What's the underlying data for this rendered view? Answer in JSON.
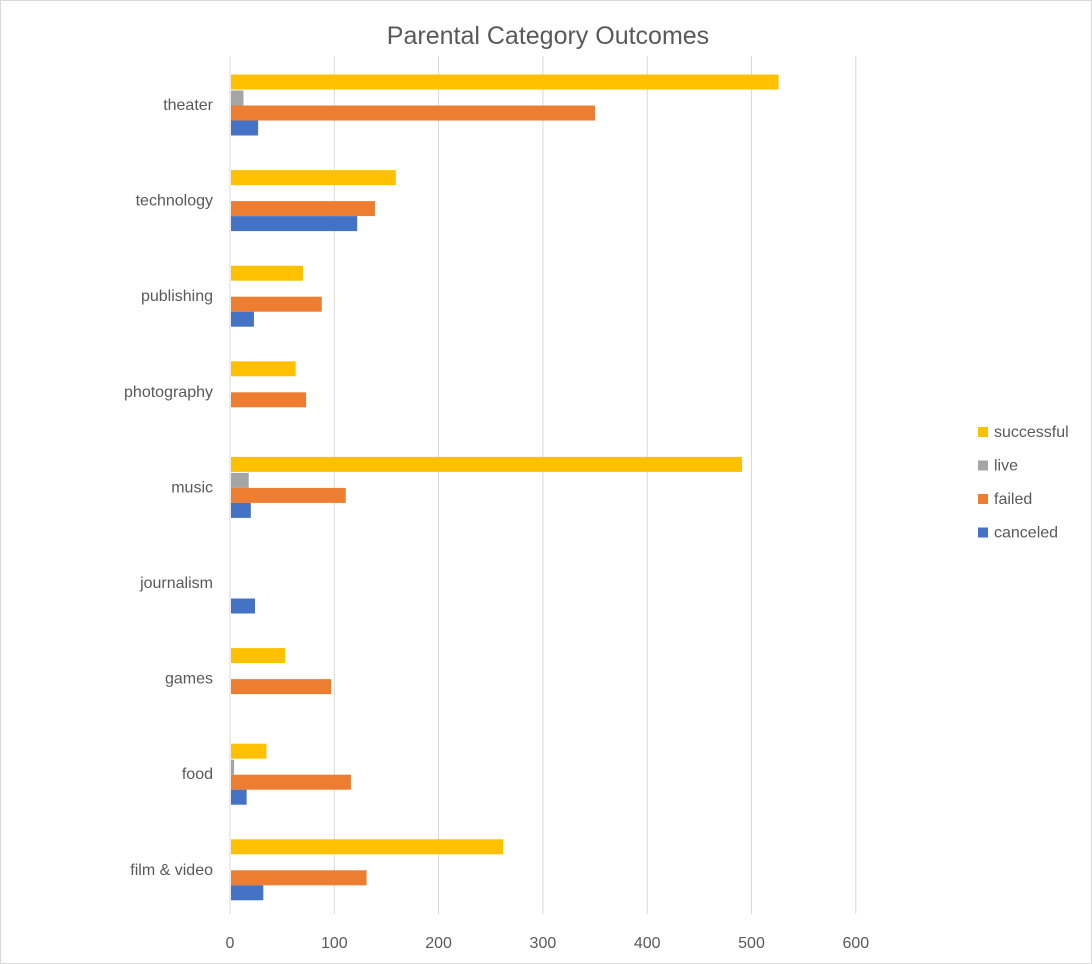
{
  "chart_data": {
    "type": "bar",
    "orientation": "horizontal",
    "title": "Parental Category Outcomes",
    "xlabel": "",
    "ylabel": "",
    "xlim": [
      0,
      600
    ],
    "x_ticks": [
      0,
      100,
      200,
      300,
      400,
      500,
      600
    ],
    "grid": "vertical",
    "legend_position": "right",
    "categories": [
      "theater",
      "technology",
      "publishing",
      "photography",
      "music",
      "journalism",
      "games",
      "food",
      "film & video"
    ],
    "series": [
      {
        "name": "successful",
        "color": "#FFC000",
        "values": [
          525,
          158,
          69,
          62,
          490,
          0,
          52,
          34,
          261
        ]
      },
      {
        "name": "live",
        "color": "#A5A5A5",
        "values": [
          12,
          0,
          0,
          0,
          17,
          0,
          0,
          3,
          0
        ]
      },
      {
        "name": "failed",
        "color": "#ED7D31",
        "values": [
          349,
          138,
          87,
          72,
          110,
          0,
          96,
          115,
          130
        ]
      },
      {
        "name": "canceled",
        "color": "#4472C4",
        "values": [
          26,
          121,
          22,
          0,
          19,
          23,
          0,
          15,
          31
        ]
      }
    ]
  }
}
